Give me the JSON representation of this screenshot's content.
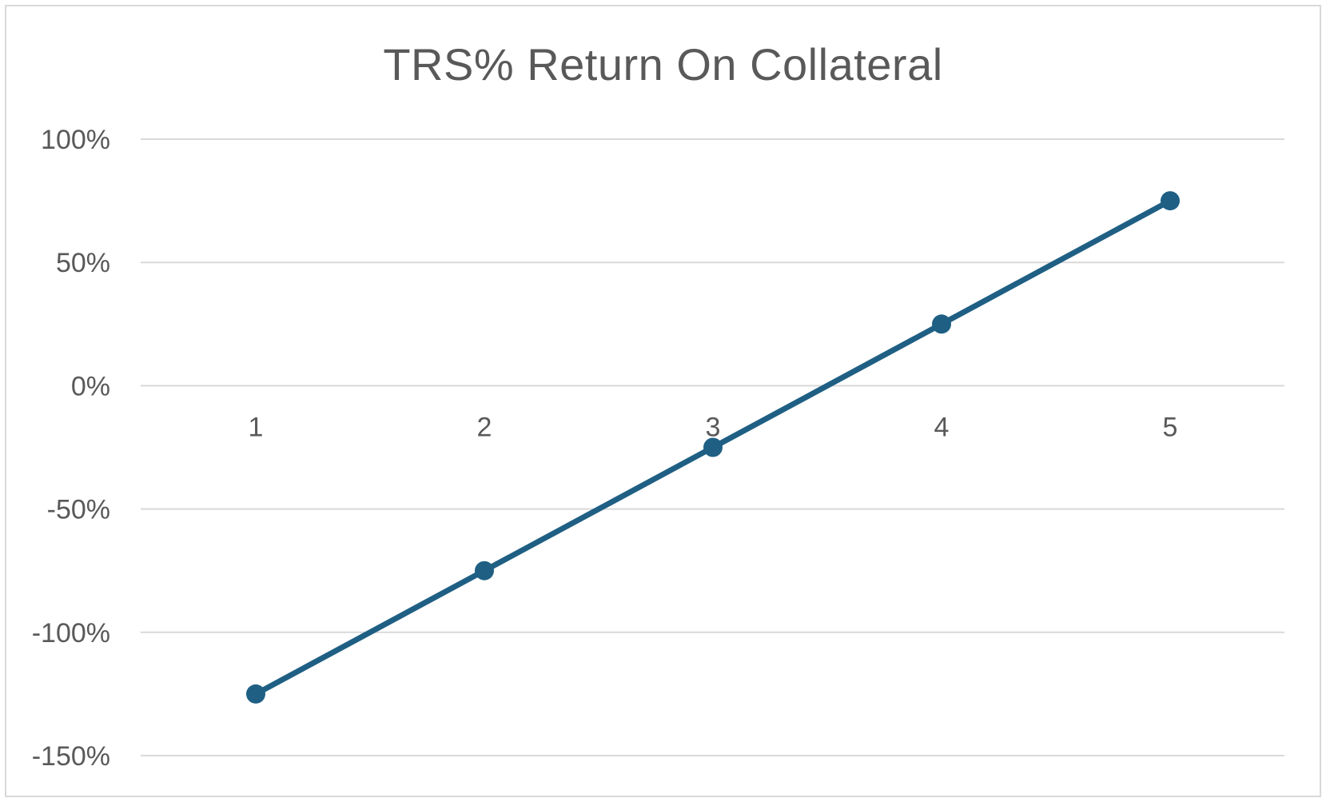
{
  "chart_data": {
    "type": "line",
    "title": "TRS% Return On Collateral",
    "xlabel": "",
    "ylabel": "",
    "categories": [
      "1",
      "2",
      "3",
      "4",
      "5"
    ],
    "series": [
      {
        "values": [
          -1.25,
          -0.75,
          -0.25,
          0.25,
          0.75
        ],
        "color": "#1f5f84"
      }
    ],
    "ylim": [
      -1.5,
      1.0
    ],
    "yticks": [
      1.0,
      0.5,
      0.0,
      -0.5,
      -1.0,
      -1.5
    ],
    "ytick_labels": [
      "100%",
      "50%",
      "0%",
      "-50%",
      "-100%",
      "-150%"
    ],
    "grid": true,
    "legend": "none",
    "markers": true
  }
}
